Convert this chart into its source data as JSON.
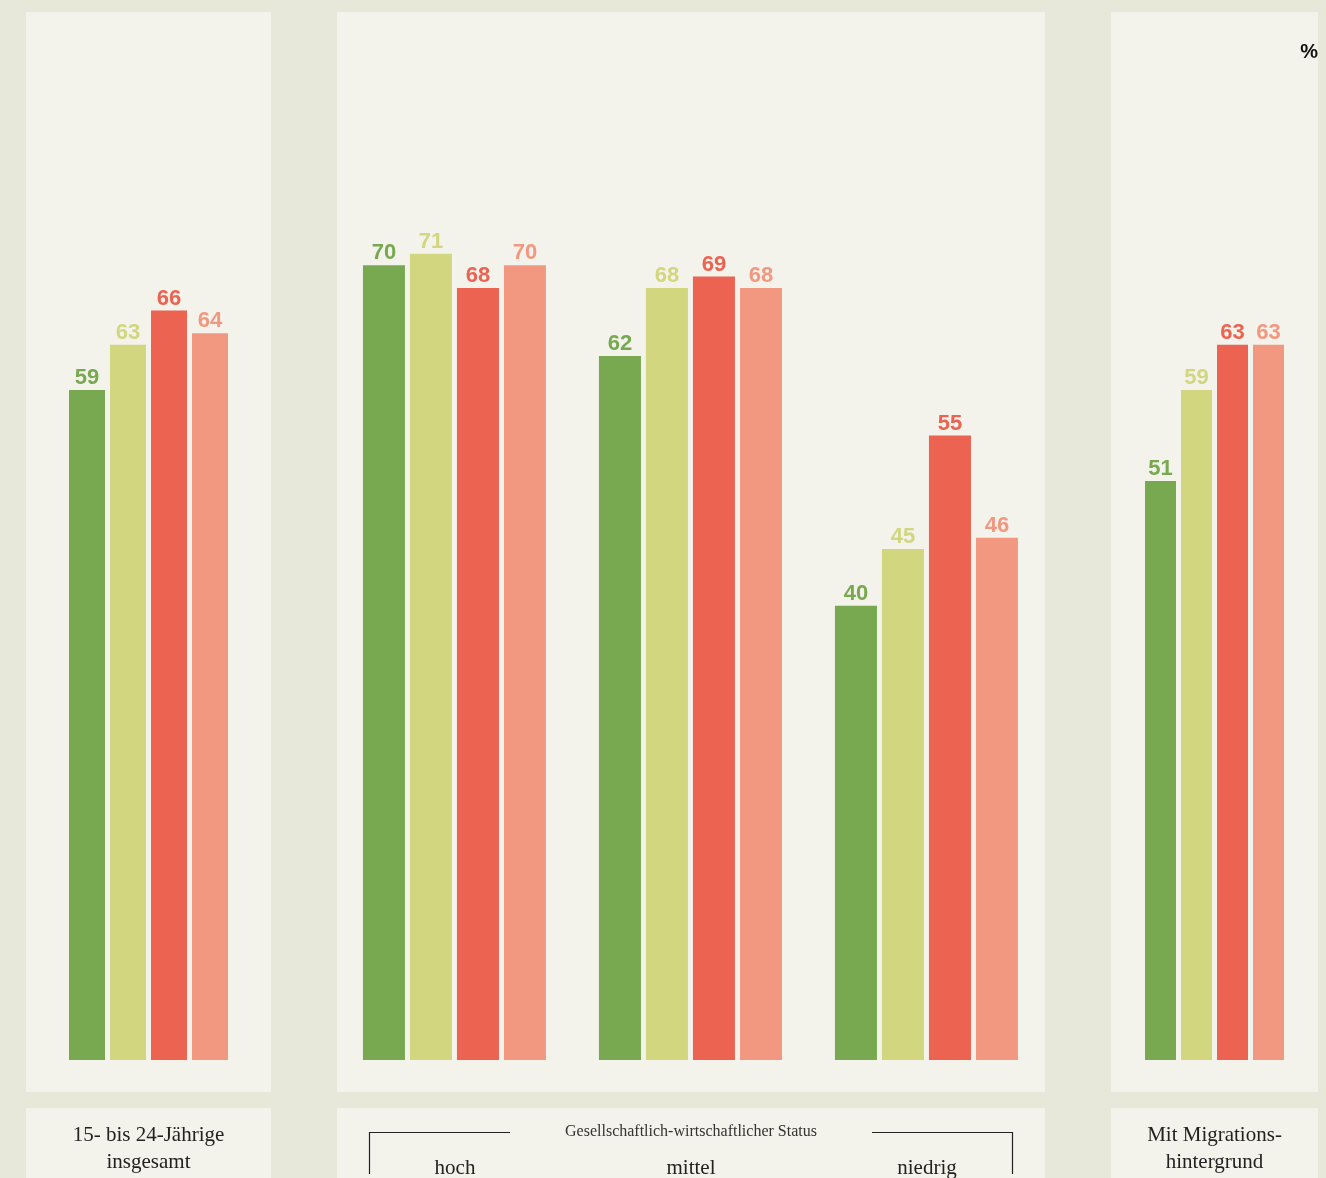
{
  "chart_data": [
    {
      "type": "bar",
      "categories": [
        "15- bis 24-Jährige\ninsgesamt"
      ],
      "series": [
        {
          "color": "#78a950",
          "values": [
            59
          ]
        },
        {
          "color": "#d2d77f",
          "values": [
            63
          ]
        },
        {
          "color": "#ec6352",
          "values": [
            66
          ]
        },
        {
          "color": "#f29880",
          "values": [
            64
          ]
        }
      ],
      "data_labels": true
    },
    {
      "type": "bar",
      "xlabel": "Gesellschaftlich-wirtschaftlicher Status",
      "categories": [
        "hoch",
        "mittel",
        "niedrig"
      ],
      "series": [
        {
          "color": "#78a950",
          "values": [
            70,
            62,
            40
          ]
        },
        {
          "color": "#d2d77f",
          "values": [
            71,
            68,
            45
          ]
        },
        {
          "color": "#ec6352",
          "values": [
            68,
            69,
            55
          ]
        },
        {
          "color": "#f29880",
          "values": [
            70,
            68,
            46
          ]
        }
      ],
      "data_labels": true
    },
    {
      "type": "bar",
      "categories": [
        "Mit Migrations-\nhintergrund"
      ],
      "series": [
        {
          "color": "#78a950",
          "values": [
            51
          ]
        },
        {
          "color": "#d2d77f",
          "values": [
            59
          ]
        },
        {
          "color": "#ec6352",
          "values": [
            63
          ]
        },
        {
          "color": "#f29880",
          "values": [
            63
          ]
        }
      ],
      "data_labels": true,
      "annotations": [
        "%"
      ]
    }
  ]
}
